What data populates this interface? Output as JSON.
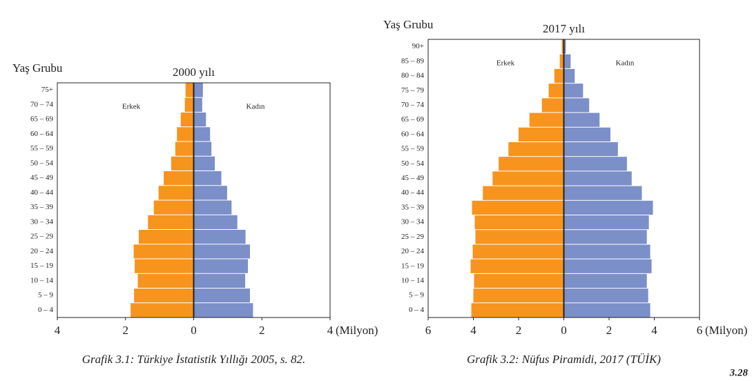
{
  "chart_data": [
    {
      "type": "pyramid",
      "title": "2000 yılı",
      "y_label": "Yaş Grubu",
      "x_unit": "(Milyon)",
      "caption": "Grafik 3.1: Türkiye İstatistik Yıllığı 2005, s. 82.",
      "categories": [
        "0 – 4",
        "5 – 9",
        "10 – 14",
        "15 – 19",
        "20 – 24",
        "25 – 29",
        "30 – 34",
        "35 – 39",
        "40 – 44",
        "45 – 49",
        "50 – 54",
        "55 – 59",
        "60 – 64",
        "65 – 69",
        "70 – 74",
        "75+"
      ],
      "series": [
        {
          "name": "Erkek",
          "color": "#f7941d",
          "values": [
            1.85,
            1.75,
            1.64,
            1.73,
            1.76,
            1.61,
            1.34,
            1.17,
            1.03,
            0.88,
            0.66,
            0.54,
            0.49,
            0.38,
            0.26,
            0.24
          ]
        },
        {
          "name": "Kadın",
          "color": "#7b8fc9",
          "values": [
            1.74,
            1.65,
            1.51,
            1.59,
            1.65,
            1.52,
            1.28,
            1.11,
            0.98,
            0.81,
            0.62,
            0.52,
            0.48,
            0.36,
            0.25,
            0.27
          ]
        }
      ],
      "xlim": [
        -4,
        4
      ],
      "xticks": [
        {
          "value": -4,
          "label": "4"
        },
        {
          "value": -2,
          "label": "2"
        },
        0,
        2,
        4
      ]
    },
    {
      "type": "pyramid",
      "title": "2017 yılı",
      "y_label": "Yaş Grubu",
      "x_unit": "(Milyon)",
      "caption": "Grafik 3.2: Nüfus Piramidi, 2017 (TÜİK)",
      "categories": [
        "0 – 4",
        "5 – 9",
        "10 – 14",
        "15 – 19",
        "20 – 24",
        "25 – 29",
        "30 – 34",
        "35 – 39",
        "40 – 44",
        "45 – 49",
        "50 – 54",
        "55 – 59",
        "60 – 64",
        "65 – 69",
        "70 – 74",
        "75 – 79",
        "80 – 84",
        "85 – 89",
        "90+"
      ],
      "series": [
        {
          "name": "Erkek",
          "color": "#f7941d",
          "values": [
            4.09,
            4.0,
            3.97,
            4.12,
            4.03,
            3.91,
            3.94,
            4.06,
            3.58,
            3.15,
            2.88,
            2.45,
            2.0,
            1.52,
            0.97,
            0.67,
            0.42,
            0.18,
            0.09
          ]
        },
        {
          "name": "Kadın",
          "color": "#7b8fc9",
          "values": [
            3.82,
            3.73,
            3.67,
            3.88,
            3.82,
            3.67,
            3.76,
            3.94,
            3.45,
            3.0,
            2.79,
            2.39,
            2.06,
            1.58,
            1.12,
            0.85,
            0.48,
            0.3,
            0.09
          ]
        }
      ],
      "xlim": [
        -6,
        6
      ],
      "xticks": [
        {
          "value": -6,
          "label": "6"
        },
        {
          "value": -4,
          "label": "4"
        },
        {
          "value": -2,
          "label": "2"
        },
        0,
        2,
        4,
        6
      ]
    }
  ],
  "page_number": "3.28"
}
